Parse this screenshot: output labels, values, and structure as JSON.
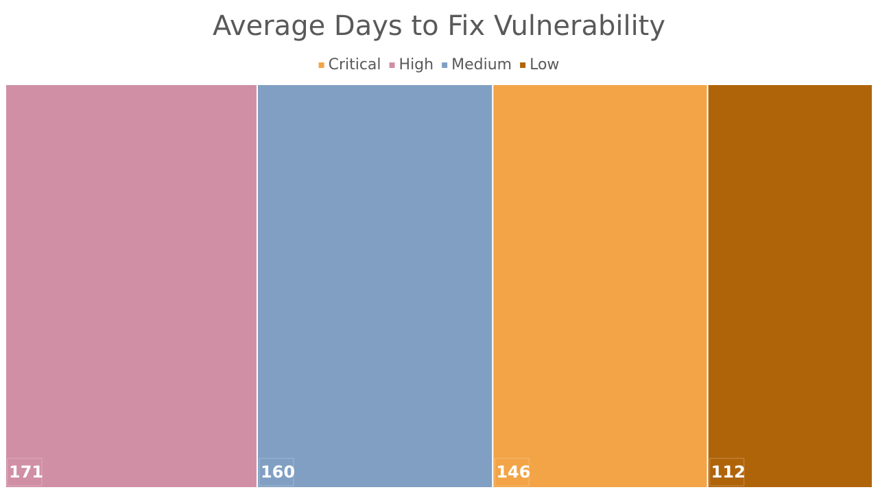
{
  "chart_data": {
    "type": "treemap",
    "title": "Average Days to Fix Vulnerability",
    "categories": [
      "Critical",
      "High",
      "Medium",
      "Low"
    ],
    "values": [
      146,
      171,
      160,
      112
    ],
    "colors": [
      "#f2a446",
      "#d08fa4",
      "#809fc3",
      "#b0640a"
    ],
    "legend": "top"
  }
}
